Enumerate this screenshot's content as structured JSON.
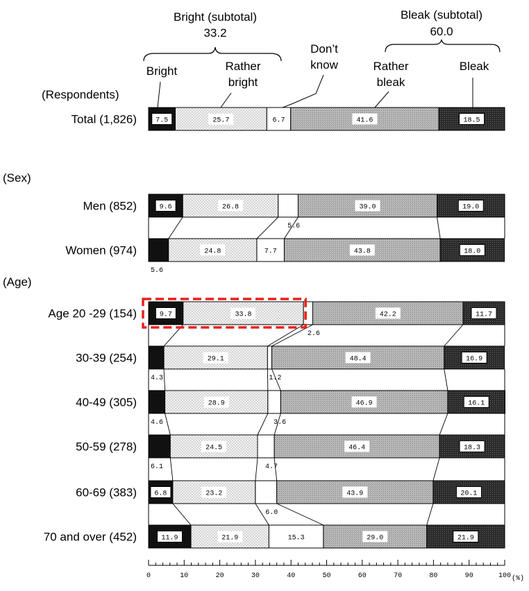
{
  "chart_data": {
    "type": "bar",
    "stacked": true,
    "orientation": "horizontal",
    "unit": "(%)",
    "respondents_header": "(Respondents)",
    "xlim": [
      0,
      100
    ],
    "x_ticks": [
      "0",
      "10",
      "20",
      "30",
      "40",
      "50",
      "60",
      "70",
      "80",
      "90",
      "100"
    ],
    "categories_labels": [
      "Bright",
      "Rather bright",
      "Don’t know",
      "Rather bleak",
      "Bleak"
    ],
    "subtotals": [
      {
        "label": "Bright (subtotal)",
        "value": "33.2"
      },
      {
        "label": "Bleak (subtotal)",
        "value": "60.0"
      }
    ],
    "section_labels": [
      "(Sex)",
      "(Age)"
    ],
    "rows": [
      {
        "label": "Total (1,826)",
        "values": [
          7.5,
          25.7,
          6.7,
          41.6,
          18.5
        ],
        "labels": [
          "7.5",
          "25.7",
          "6.7",
          "41.6",
          "18.5"
        ]
      },
      {
        "label": "Men (852)",
        "values": [
          9.6,
          26.8,
          5.6,
          39.0,
          19.0
        ],
        "labels": [
          "9.6",
          "26.8",
          "",
          "39.0",
          "19.0"
        ]
      },
      {
        "label": "Women (974)",
        "values": [
          5.6,
          24.8,
          7.7,
          43.8,
          18.0
        ],
        "labels": [
          "",
          "24.8",
          "7.7",
          "43.8",
          "18.0"
        ]
      },
      {
        "label": "Age 20 -29 (154)",
        "values": [
          9.7,
          33.8,
          2.6,
          42.2,
          11.7
        ],
        "labels": [
          "9.7",
          "33.8",
          "",
          "42.2",
          "11.7"
        ]
      },
      {
        "label": "30-39 (254)",
        "values": [
          4.3,
          29.1,
          1.2,
          48.4,
          16.9
        ],
        "labels": [
          "",
          "29.1",
          "",
          "48.4",
          "16.9"
        ]
      },
      {
        "label": "40-49 (305)",
        "values": [
          4.6,
          28.9,
          3.6,
          46.9,
          16.1
        ],
        "labels": [
          "",
          "28.9",
          "",
          "46.9",
          "16.1"
        ]
      },
      {
        "label": "50-59 (278)",
        "values": [
          6.1,
          24.5,
          4.7,
          46.4,
          18.3
        ],
        "labels": [
          "",
          "24.5",
          "",
          "46.4",
          "18.3"
        ]
      },
      {
        "label": "60-69 (383)",
        "values": [
          6.8,
          23.2,
          6.0,
          43.9,
          20.1
        ],
        "labels": [
          "6.8",
          "23.2",
          "",
          "43.9",
          "20.1"
        ]
      },
      {
        "label": "70 and over (452)",
        "values": [
          11.9,
          21.9,
          15.3,
          29.0,
          21.9
        ],
        "labels": [
          "11.9",
          "21.9",
          "15.3",
          "29.0",
          "21.9"
        ]
      }
    ],
    "external_labels": [
      {
        "row": 1,
        "segment": 2,
        "text": "5.6",
        "side": "below"
      },
      {
        "row": 2,
        "segment": 0,
        "text": "5.6",
        "side": "below"
      },
      {
        "row": 3,
        "segment": 2,
        "text": "2.6",
        "side": "below"
      },
      {
        "row": 4,
        "segment": 0,
        "text": "4.3",
        "side": "below"
      },
      {
        "row": 4,
        "segment": 2,
        "text": "1.2",
        "side": "below"
      },
      {
        "row": 5,
        "segment": 0,
        "text": "4.6",
        "side": "below"
      },
      {
        "row": 5,
        "segment": 2,
        "text": "3.6",
        "side": "below"
      },
      {
        "row": 6,
        "segment": 0,
        "text": "6.1",
        "side": "below"
      },
      {
        "row": 6,
        "segment": 2,
        "text": "4.7",
        "side": "below"
      },
      {
        "row": 7,
        "segment": 2,
        "text": "6.0",
        "side": "below"
      }
    ],
    "highlight": {
      "row": 3,
      "segments": [
        0,
        1
      ],
      "color": "#e8201c"
    },
    "colors": {
      "bright": "#111111",
      "rather_bright": "#ececec",
      "dont_know": "#ffffff",
      "rather_bleak": "#b3b3b3",
      "bleak": "#333333",
      "highlight": "#e8201c"
    }
  }
}
